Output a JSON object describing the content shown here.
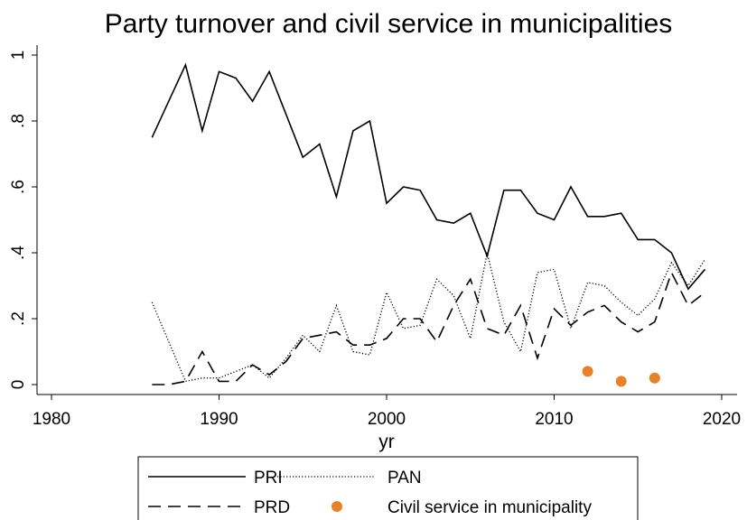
{
  "chart_data": {
    "type": "line",
    "title": "Party turnover and civil service in municipalities",
    "xlabel": "yr",
    "ylabel": "",
    "xlim": [
      1978,
      2021
    ],
    "ylim": [
      0,
      1
    ],
    "x_ticks": [
      1980,
      1990,
      2000,
      2010,
      2020
    ],
    "x_tick_labels": [
      "1980",
      "1990",
      "2000",
      "2010",
      "2020"
    ],
    "y_ticks": [
      0,
      0.2,
      0.4,
      0.6,
      0.8,
      1
    ],
    "y_tick_labels": [
      "0",
      ".2",
      ".4",
      ".6",
      ".8",
      "1"
    ],
    "grid": false,
    "legend_position": "bottom",
    "x": [
      1986,
      1987,
      1988,
      1989,
      1990,
      1991,
      1992,
      1993,
      1994,
      1995,
      1996,
      1997,
      1998,
      1999,
      2000,
      2001,
      2002,
      2003,
      2004,
      2005,
      2006,
      2007,
      2008,
      2009,
      2010,
      2011,
      2012,
      2013,
      2014,
      2015,
      2016,
      2017,
      2018,
      2019
    ],
    "series": [
      {
        "name": "PRI",
        "style": "solid",
        "color": "#000000",
        "values": [
          0.75,
          0.86,
          0.97,
          0.77,
          0.95,
          0.93,
          0.86,
          0.95,
          0.82,
          0.69,
          0.73,
          0.57,
          0.77,
          0.8,
          0.55,
          0.6,
          0.59,
          0.5,
          0.49,
          0.52,
          0.39,
          0.59,
          0.59,
          0.52,
          0.5,
          0.6,
          0.51,
          0.51,
          0.52,
          0.44,
          0.44,
          0.4,
          0.29,
          0.35
        ]
      },
      {
        "name": "PAN",
        "style": "dotted",
        "color": "#000000",
        "values": [
          0.25,
          0.13,
          0.01,
          0.02,
          0.02,
          0.04,
          0.06,
          0.02,
          0.08,
          0.15,
          0.1,
          0.24,
          0.1,
          0.09,
          0.28,
          0.17,
          0.18,
          0.32,
          0.27,
          0.14,
          0.4,
          0.19,
          0.1,
          0.34,
          0.35,
          0.17,
          0.31,
          0.3,
          0.25,
          0.21,
          0.26,
          0.37,
          0.3,
          0.38
        ]
      },
      {
        "name": "PRD",
        "style": "dashed",
        "color": "#000000",
        "values": [
          0.0,
          0.0,
          0.01,
          0.1,
          0.01,
          0.01,
          0.06,
          0.03,
          0.07,
          0.14,
          0.15,
          0.16,
          0.12,
          0.12,
          0.14,
          0.2,
          0.2,
          0.13,
          0.24,
          0.32,
          0.17,
          0.15,
          0.24,
          0.08,
          0.23,
          0.18,
          0.22,
          0.24,
          0.19,
          0.16,
          0.19,
          0.34,
          0.24,
          0.28
        ]
      },
      {
        "name": "Civil service in municipality",
        "style": "marker",
        "color": "#e6822a",
        "points": [
          [
            2012,
            0.04
          ],
          [
            2014,
            0.01
          ],
          [
            2016,
            0.02
          ]
        ]
      }
    ]
  }
}
